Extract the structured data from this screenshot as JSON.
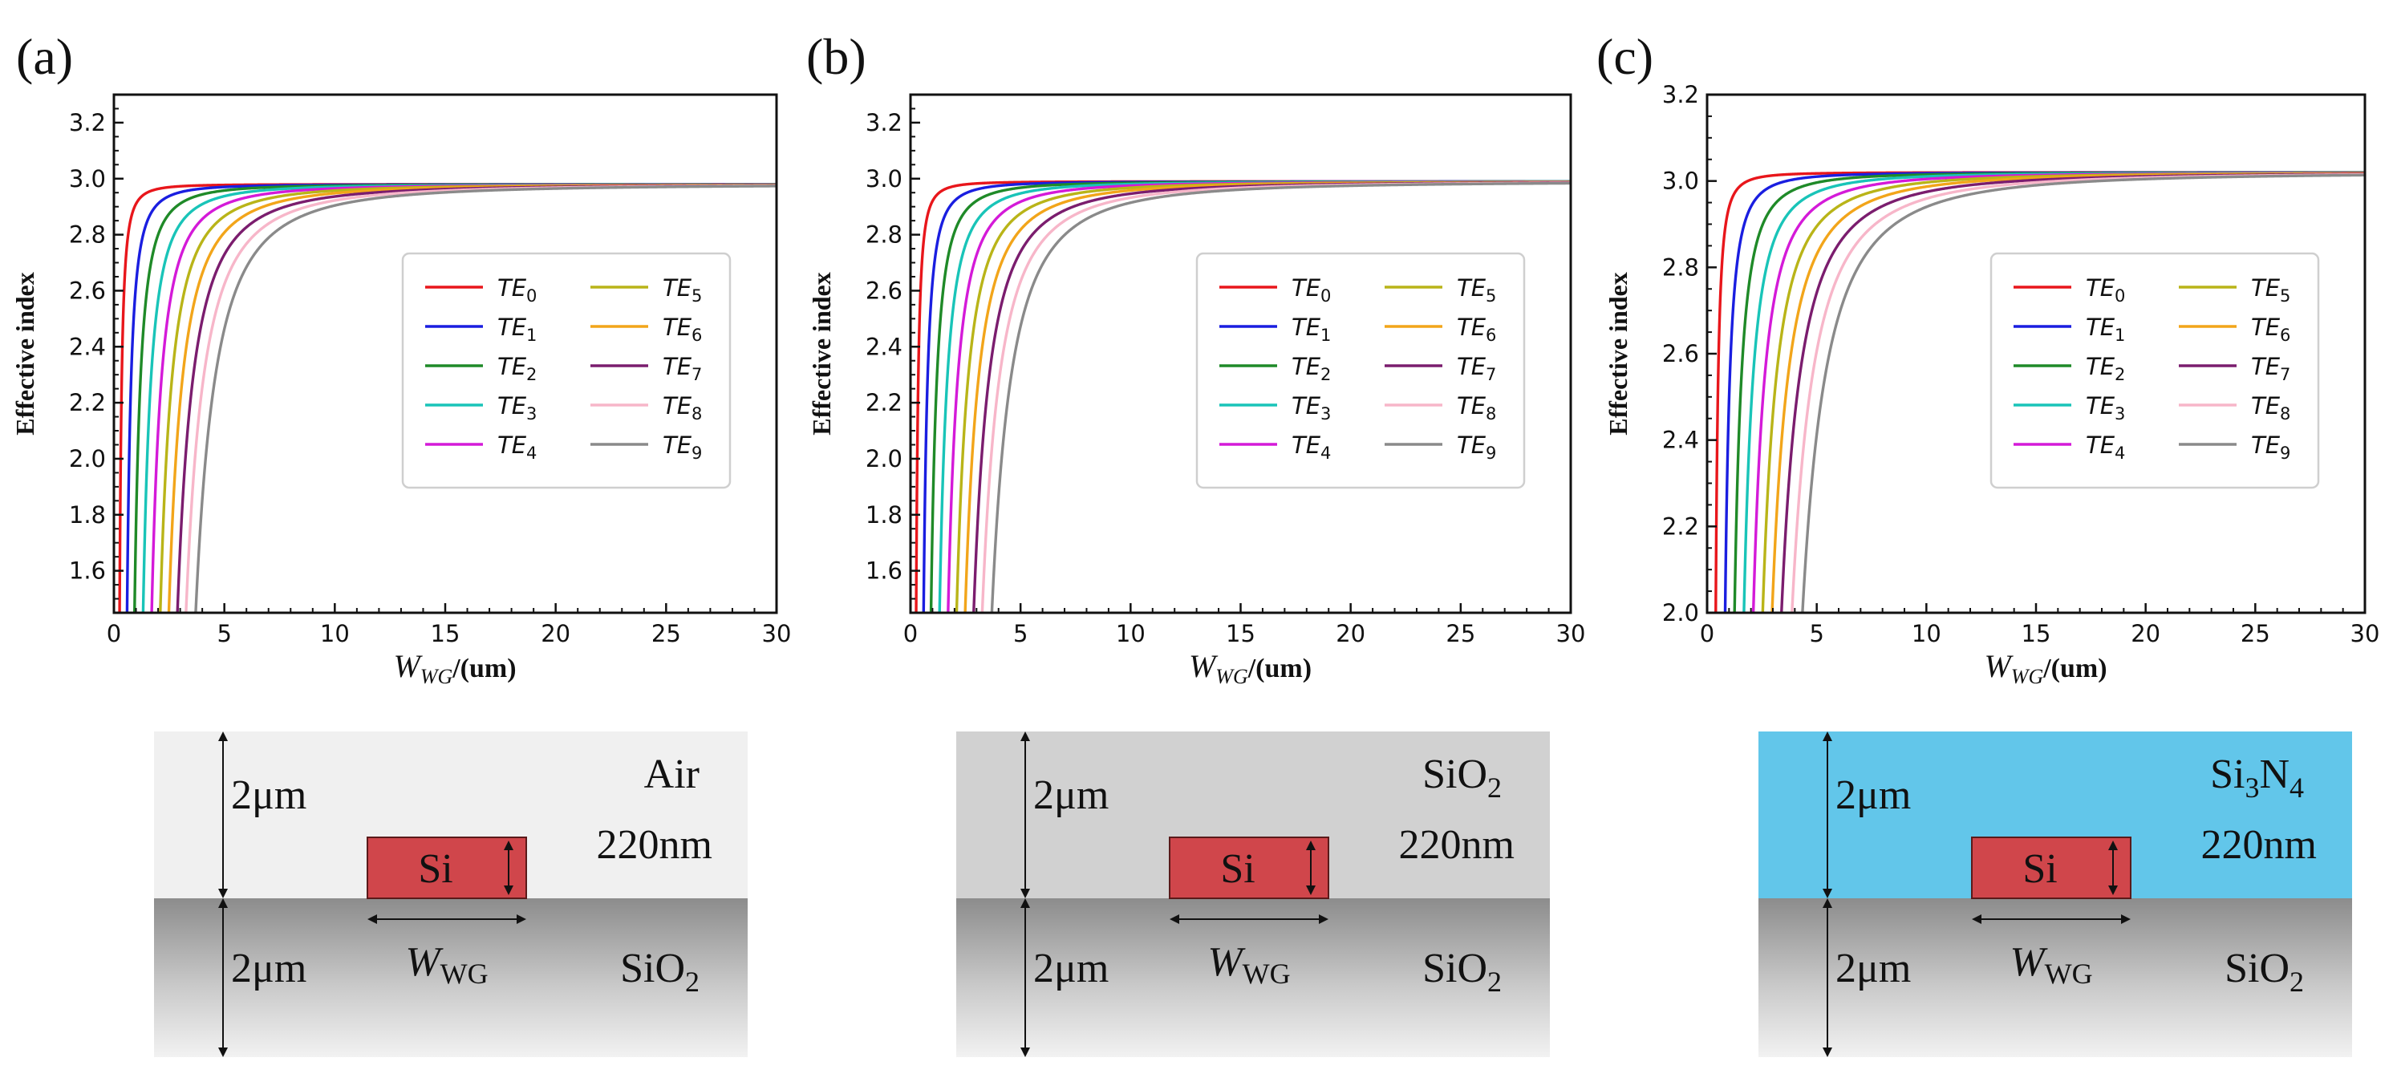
{
  "figure": {
    "x_title_main": "W",
    "x_title_sub": "WG",
    "x_title_unit": "/(um)",
    "y_title": "Effective index"
  },
  "legend": {
    "base": "TE",
    "entries": [
      {
        "sub": "0",
        "color": "#e8161b"
      },
      {
        "sub": "1",
        "color": "#1a1ee0"
      },
      {
        "sub": "2",
        "color": "#1f8a28"
      },
      {
        "sub": "3",
        "color": "#19c4b8"
      },
      {
        "sub": "4",
        "color": "#d41ad8"
      },
      {
        "sub": "5",
        "color": "#b9b418"
      },
      {
        "sub": "6",
        "color": "#f2a51a"
      },
      {
        "sub": "7",
        "color": "#7b1d6e"
      },
      {
        "sub": "8",
        "color": "#f7b6c9"
      },
      {
        "sub": "9",
        "color": "#8a8a8a"
      }
    ]
  },
  "chart_data": [
    {
      "type": "line",
      "label": "(a)",
      "xlim": [
        0,
        30
      ],
      "ylim": [
        1.45,
        3.3
      ],
      "xticks": [
        "0",
        "5",
        "10",
        "15",
        "20",
        "25",
        "30"
      ],
      "yticks": [
        "1.6",
        "1.8",
        "2.0",
        "2.2",
        "2.4",
        "2.6",
        "2.8",
        "3.0",
        "3.2"
      ],
      "n_inf": 2.98,
      "series": [
        {
          "name": "TE0",
          "cutoff": 0.1,
          "k": 0.25
        },
        {
          "name": "TE1",
          "cutoff": 0.3,
          "k": 0.47
        },
        {
          "name": "TE2",
          "cutoff": 0.5,
          "k": 0.69
        },
        {
          "name": "TE3",
          "cutoff": 0.75,
          "k": 0.91
        },
        {
          "name": "TE4",
          "cutoff": 1.0,
          "k": 1.13
        },
        {
          "name": "TE5",
          "cutoff": 1.25,
          "k": 1.35
        },
        {
          "name": "TE6",
          "cutoff": 1.5,
          "k": 1.57
        },
        {
          "name": "TE7",
          "cutoff": 1.75,
          "k": 1.79
        },
        {
          "name": "TE8",
          "cutoff": 2.0,
          "k": 2.01
        },
        {
          "name": "TE9",
          "cutoff": 2.3,
          "k": 2.23
        }
      ]
    },
    {
      "type": "line",
      "label": "(b)",
      "xlim": [
        0,
        30
      ],
      "ylim": [
        1.45,
        3.3
      ],
      "xticks": [
        "0",
        "5",
        "10",
        "15",
        "20",
        "25",
        "30"
      ],
      "yticks": [
        "1.6",
        "1.8",
        "2.0",
        "2.2",
        "2.4",
        "2.6",
        "2.8",
        "3.0",
        "3.2"
      ],
      "n_inf": 2.99,
      "series": [
        {
          "name": "TE0",
          "cutoff": 0.1,
          "k": 0.25
        },
        {
          "name": "TE1",
          "cutoff": 0.3,
          "k": 0.47
        },
        {
          "name": "TE2",
          "cutoff": 0.5,
          "k": 0.69
        },
        {
          "name": "TE3",
          "cutoff": 0.75,
          "k": 0.91
        },
        {
          "name": "TE4",
          "cutoff": 1.0,
          "k": 1.13
        },
        {
          "name": "TE5",
          "cutoff": 1.25,
          "k": 1.35
        },
        {
          "name": "TE6",
          "cutoff": 1.5,
          "k": 1.57
        },
        {
          "name": "TE7",
          "cutoff": 1.75,
          "k": 1.79
        },
        {
          "name": "TE8",
          "cutoff": 2.0,
          "k": 2.01
        },
        {
          "name": "TE9",
          "cutoff": 2.3,
          "k": 2.23
        }
      ]
    },
    {
      "type": "line",
      "label": "(c)",
      "xlim": [
        0,
        30
      ],
      "ylim": [
        2.0,
        3.2
      ],
      "xticks": [
        "0",
        "5",
        "10",
        "15",
        "20",
        "25",
        "30"
      ],
      "yticks": [
        "2.0",
        "2.2",
        "2.4",
        "2.6",
        "2.8",
        "3.0",
        "3.2"
      ],
      "n_inf": 3.02,
      "series": [
        {
          "name": "TE0",
          "cutoff": 0.2,
          "k": 0.24
        },
        {
          "name": "TE1",
          "cutoff": 0.45,
          "k": 0.46
        },
        {
          "name": "TE2",
          "cutoff": 0.7,
          "k": 0.68
        },
        {
          "name": "TE3",
          "cutoff": 0.95,
          "k": 0.9
        },
        {
          "name": "TE4",
          "cutoff": 1.2,
          "k": 1.12
        },
        {
          "name": "TE5",
          "cutoff": 1.45,
          "k": 1.34
        },
        {
          "name": "TE6",
          "cutoff": 1.7,
          "k": 1.56
        },
        {
          "name": "TE7",
          "cutoff": 1.95,
          "k": 1.78
        },
        {
          "name": "TE8",
          "cutoff": 2.25,
          "k": 2.0
        },
        {
          "name": "TE9",
          "cutoff": 2.55,
          "k": 2.22
        }
      ]
    }
  ],
  "diagrams": [
    {
      "top_label_main": "Air",
      "top_label_sub": "",
      "top_label_tail": "",
      "top_color": "#f0f0f0",
      "thickness": "220nm",
      "core": "Si",
      "top_height": "2μm",
      "bottom_height": "2μm",
      "bottom_label_main": "SiO",
      "bottom_label_sub": "2",
      "width_main": "W",
      "width_sub": "WG"
    },
    {
      "top_label_main": "SiO",
      "top_label_sub": "2",
      "top_label_tail": "",
      "top_color": "#d1d1d1",
      "thickness": "220nm",
      "core": "Si",
      "top_height": "2μm",
      "bottom_height": "2μm",
      "bottom_label_main": "SiO",
      "bottom_label_sub": "2",
      "width_main": "W",
      "width_sub": "WG"
    },
    {
      "top_label_main": "Si",
      "top_label_sub": "3",
      "top_label_tail": "N",
      "top_label_sub2": "4",
      "top_color": "#62c6ea",
      "thickness": "220nm",
      "core": "Si",
      "top_height": "2μm",
      "bottom_height": "2μm",
      "bottom_label_main": "SiO",
      "bottom_label_sub": "2",
      "width_main": "W",
      "width_sub": "WG"
    }
  ]
}
